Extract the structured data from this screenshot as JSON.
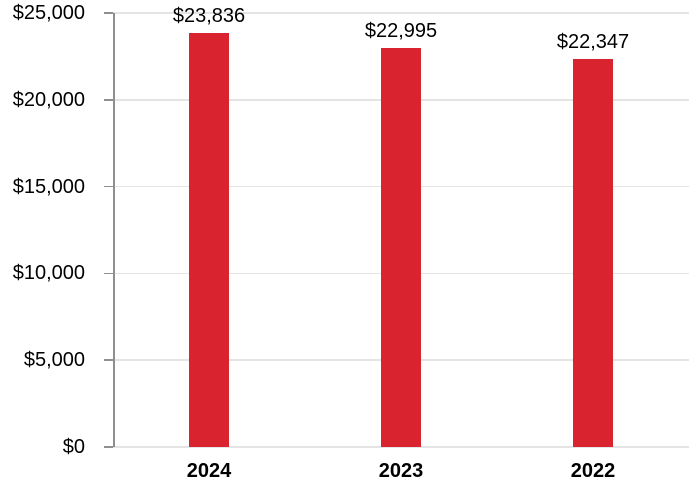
{
  "chart_data": {
    "type": "bar",
    "categories": [
      "2024",
      "2023",
      "2022"
    ],
    "values": [
      23836,
      22995,
      22347
    ],
    "value_labels": [
      "$23,836",
      "$22,995",
      "$22,347"
    ],
    "ylim": [
      0,
      25000
    ],
    "ytick_step": 5000,
    "yticks": [
      {
        "value": 0,
        "label": "$0"
      },
      {
        "value": 5000,
        "label": "$5,000"
      },
      {
        "value": 10000,
        "label": "$10,000"
      },
      {
        "value": 15000,
        "label": "$15,000"
      },
      {
        "value": 20000,
        "label": "$20,000"
      },
      {
        "value": 25000,
        "label": "$25,000"
      }
    ],
    "grid": true,
    "legend_position": "none",
    "colors": {
      "bar": "#D9232E",
      "axis_line": "#8F8F8F",
      "gridline": "#E4E4E4",
      "label_text": "#000000"
    }
  }
}
